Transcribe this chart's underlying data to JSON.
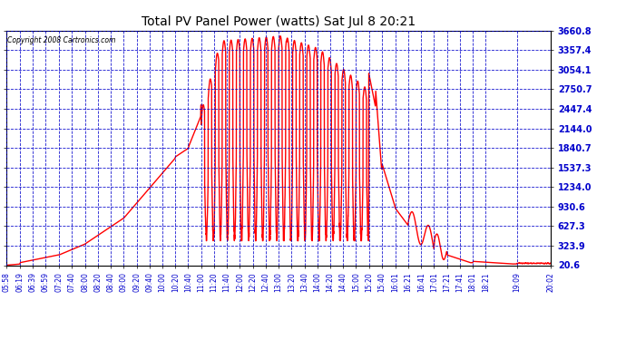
{
  "title": "Total PV Panel Power (watts) Sat Jul 8 20:21",
  "copyright": "Copyright 2008 Cartronics.com",
  "background_color": "#ffffff",
  "plot_bg_color": "#ffffff",
  "grid_color": "#0000cc",
  "line_color": "#ff0000",
  "ylabel_color": "#0000cc",
  "xlabel_color": "#0000cc",
  "title_color": "#000000",
  "ylim": [
    20.6,
    3660.8
  ],
  "yticks": [
    20.6,
    323.9,
    627.3,
    930.6,
    1234.0,
    1537.3,
    1840.7,
    2144.0,
    2447.4,
    2750.7,
    3054.1,
    3357.4,
    3660.8
  ],
  "x_labels": [
    "05:58",
    "06:19",
    "06:39",
    "06:59",
    "07:20",
    "07:40",
    "08:00",
    "08:20",
    "08:40",
    "09:00",
    "09:20",
    "09:40",
    "10:00",
    "10:20",
    "10:40",
    "11:00",
    "11:20",
    "11:40",
    "12:00",
    "12:20",
    "12:40",
    "13:00",
    "13:20",
    "13:40",
    "14:00",
    "14:20",
    "14:40",
    "15:00",
    "15:20",
    "15:40",
    "16:01",
    "16:21",
    "16:41",
    "17:01",
    "17:21",
    "17:41",
    "18:01",
    "18:21",
    "19:09",
    "20:02"
  ],
  "line_width": 1.0,
  "figsize": [
    6.9,
    3.75
  ],
  "dpi": 100
}
